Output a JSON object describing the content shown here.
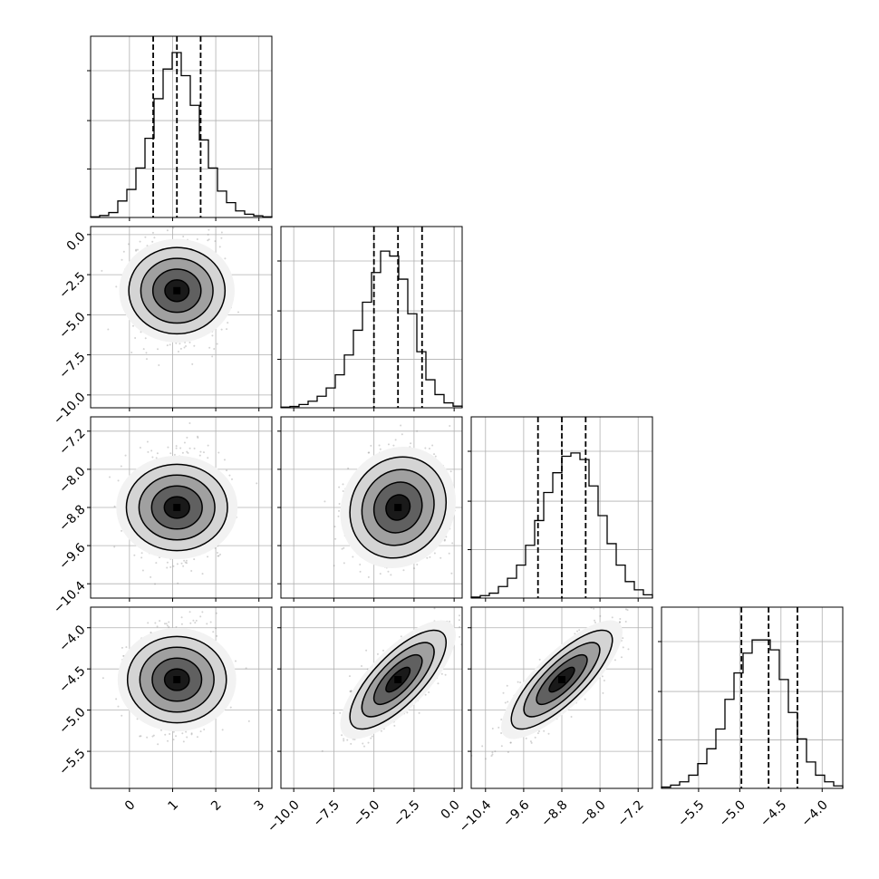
{
  "chart_data": {
    "type": "corner",
    "title": "",
    "parameters": [
      {
        "range": [
          -0.9,
          3.3
        ],
        "ticks": [
          0,
          1,
          2,
          3
        ],
        "tick_labels": [
          "0",
          "1",
          "2",
          "3"
        ],
        "mean": 1.1,
        "sd": 0.5,
        "quantiles": [
          0.55,
          1.1,
          1.65
        ],
        "hist": [
          0.004,
          0.012,
          0.03,
          0.1,
          0.17,
          0.3,
          0.48,
          0.72,
          0.9,
          1.0,
          0.86,
          0.68,
          0.47,
          0.3,
          0.16,
          0.09,
          0.04,
          0.02,
          0.01,
          0.004
        ]
      },
      {
        "range": [
          -10.8,
          0.5
        ],
        "ticks": [
          -10,
          -7.5,
          -5,
          -2.5,
          0
        ],
        "tick_labels": [
          "−10.0",
          "−7.5",
          "−5.0",
          "−2.5",
          "0.0"
        ],
        "mean": -3.5,
        "sd": 1.5,
        "quantiles": [
          -5.0,
          -3.5,
          -2.0
        ],
        "hist": [
          0.004,
          0.008,
          0.02,
          0.04,
          0.07,
          0.12,
          0.2,
          0.32,
          0.47,
          0.64,
          0.82,
          0.95,
          0.92,
          0.78,
          0.57,
          0.34,
          0.17,
          0.08,
          0.03,
          0.01
        ]
      },
      {
        "range": [
          -10.7,
          -6.9
        ],
        "ticks": [
          -10.4,
          -9.6,
          -8.8,
          -8.0,
          -7.2
        ],
        "tick_labels": [
          "−10.4",
          "−9.6",
          "−8.8",
          "−8.0",
          "−7.2"
        ],
        "mean": -8.8,
        "sd": 0.53,
        "quantiles": [
          -9.3,
          -8.8,
          -8.3
        ],
        "hist": [
          0.006,
          0.015,
          0.03,
          0.07,
          0.12,
          0.2,
          0.32,
          0.47,
          0.64,
          0.76,
          0.86,
          0.88,
          0.84,
          0.68,
          0.5,
          0.33,
          0.2,
          0.1,
          0.05,
          0.02
        ]
      },
      {
        "range": [
          -5.95,
          -3.75
        ],
        "ticks": [
          -5.5,
          -5.0,
          -4.5,
          -4.0
        ],
        "tick_labels": [
          "−5.5",
          "−5.0",
          "−4.5",
          "−4.0"
        ],
        "mean": -4.63,
        "sd": 0.3,
        "quantiles": [
          -4.98,
          -4.65,
          -4.3
        ],
        "hist": [
          0.008,
          0.02,
          0.04,
          0.08,
          0.15,
          0.24,
          0.36,
          0.54,
          0.7,
          0.82,
          0.9,
          0.9,
          0.84,
          0.66,
          0.46,
          0.3,
          0.16,
          0.08,
          0.04,
          0.015
        ]
      }
    ],
    "correlations": [
      [
        1,
        0,
        0,
        0
      ],
      [
        0,
        1,
        0.1,
        0.75
      ],
      [
        0,
        0.1,
        1,
        0.8
      ],
      [
        0,
        0.75,
        0.8,
        1
      ]
    ],
    "contour_levels": [
      0.5,
      1.0,
      1.5,
      2.0
    ],
    "grid": true
  },
  "colors": {
    "line": "#000000",
    "grid": "#b0b0b0",
    "scatter": "#808080"
  }
}
